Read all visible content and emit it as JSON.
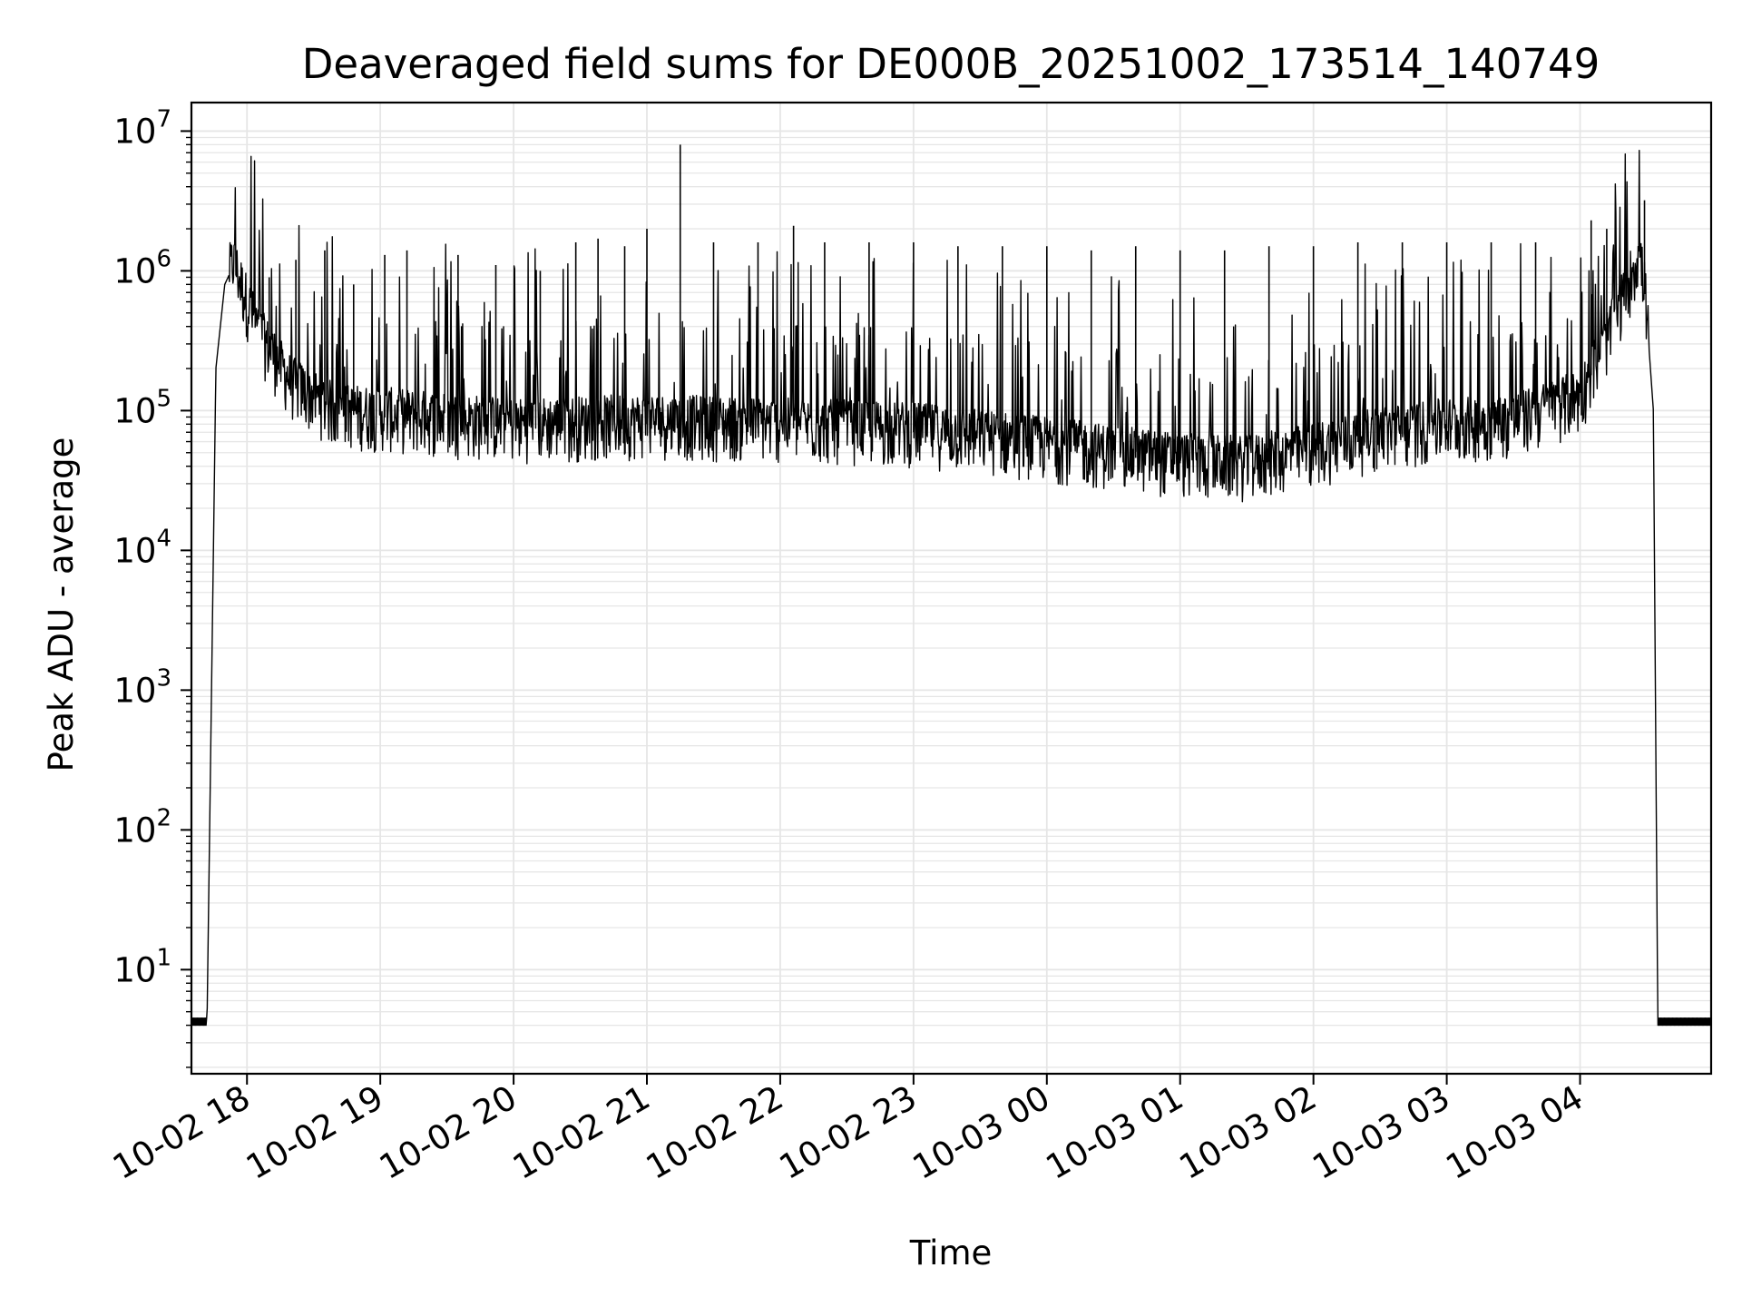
{
  "chart_data": {
    "type": "line",
    "title": "Deaveraged field sums for DE000B_20251002_173514_140749",
    "xlabel": "Time",
    "ylabel": "Peak ADU - average",
    "yscale": "log",
    "xlim": [
      "2025-10-02 17:35",
      "2025-10-03 04:59"
    ],
    "ylim": [
      1.8,
      16000000
    ],
    "grid": true,
    "x_ticks": [
      "10-02 18",
      "10-02 19",
      "10-02 20",
      "10-02 21",
      "10-02 22",
      "10-02 23",
      "10-03 00",
      "10-03 01",
      "10-03 02",
      "10-03 03",
      "10-03 04"
    ],
    "y_ticks": [
      {
        "base": "10",
        "exp": "1"
      },
      {
        "base": "10",
        "exp": "2"
      },
      {
        "base": "10",
        "exp": "3"
      },
      {
        "base": "10",
        "exp": "4"
      },
      {
        "base": "10",
        "exp": "5"
      },
      {
        "base": "10",
        "exp": "6"
      },
      {
        "base": "10",
        "exp": "7"
      }
    ],
    "line_color": "#000000",
    "grid_color": "#e6e6e6",
    "series": [
      {
        "baseline": [
          [
            "2025-10-02 17:35",
            4
          ],
          [
            "2025-10-02 17:42",
            4
          ],
          [
            "2025-10-02 17:46",
            200000
          ],
          [
            "2025-10-02 17:50",
            800000
          ],
          [
            "2025-10-02 17:54",
            1100000
          ],
          [
            "2025-10-02 17:58",
            700000
          ],
          [
            "2025-10-02 18:05",
            350000
          ],
          [
            "2025-10-02 18:20",
            150000
          ],
          [
            "2025-10-02 18:40",
            95000
          ],
          [
            "2025-10-02 19:00",
            90000
          ],
          [
            "2025-10-02 20:00",
            75000
          ],
          [
            "2025-10-02 21:00",
            80000
          ],
          [
            "2025-10-02 22:00",
            75000
          ],
          [
            "2025-10-02 23:00",
            70000
          ],
          [
            "2025-10-03 00:00",
            55000
          ],
          [
            "2025-10-03 00:30",
            48000
          ],
          [
            "2025-10-03 01:00",
            42000
          ],
          [
            "2025-10-03 01:30",
            40000
          ],
          [
            "2025-10-03 02:00",
            50000
          ],
          [
            "2025-10-03 02:30",
            65000
          ],
          [
            "2025-10-03 03:00",
            75000
          ],
          [
            "2025-10-03 03:30",
            80000
          ],
          [
            "2025-10-03 04:00",
            120000
          ],
          [
            "2025-10-03 04:15",
            400000
          ],
          [
            "2025-10-03 04:26",
            1200000
          ],
          [
            "2025-10-03 04:29",
            800000
          ],
          [
            "2025-10-03 04:33",
            100000
          ],
          [
            "2025-10-03 04:35",
            4
          ],
          [
            "2025-10-03 04:59",
            4
          ]
        ],
        "spikes": [
          [
            "2025-10-02 18:10",
            900000
          ],
          [
            "2025-10-02 18:22",
            1200000
          ],
          [
            "2025-10-02 18:35",
            1400000
          ],
          [
            "2025-10-02 18:48",
            800000
          ],
          [
            "2025-10-02 19:02",
            1300000
          ],
          [
            "2025-10-02 19:12",
            1400000
          ],
          [
            "2025-10-02 19:35",
            1300000
          ],
          [
            "2025-10-02 19:52",
            1100000
          ],
          [
            "2025-10-02 20:12",
            1000000
          ],
          [
            "2025-10-02 20:28",
            1600000
          ],
          [
            "2025-10-02 20:38",
            1700000
          ],
          [
            "2025-10-02 20:50",
            1500000
          ],
          [
            "2025-10-02 21:00",
            2000000
          ],
          [
            "2025-10-02 21:15",
            8000000
          ],
          [
            "2025-10-02 21:30",
            1600000
          ],
          [
            "2025-10-02 21:50",
            1600000
          ],
          [
            "2025-10-02 22:06",
            2100000
          ],
          [
            "2025-10-02 22:20",
            1600000
          ],
          [
            "2025-10-02 22:40",
            1600000
          ],
          [
            "2025-10-02 23:00",
            1600000
          ],
          [
            "2025-10-02 23:20",
            1500000
          ],
          [
            "2025-10-02 23:40",
            1500000
          ],
          [
            "2025-10-03 00:00",
            1500000
          ],
          [
            "2025-10-03 00:20",
            1400000
          ],
          [
            "2025-10-03 00:40",
            1500000
          ],
          [
            "2025-10-03 01:00",
            1400000
          ],
          [
            "2025-10-03 01:20",
            1400000
          ],
          [
            "2025-10-03 01:40",
            1500000
          ],
          [
            "2025-10-03 02:00",
            1500000
          ],
          [
            "2025-10-03 02:20",
            1600000
          ],
          [
            "2025-10-03 02:40",
            1600000
          ],
          [
            "2025-10-03 03:00",
            1600000
          ],
          [
            "2025-10-03 03:20",
            1600000
          ],
          [
            "2025-10-03 03:40",
            1600000
          ],
          [
            "2025-10-03 04:05",
            2300000
          ],
          [
            "2025-10-03 04:12",
            2000000
          ],
          [
            "2025-10-03 04:29",
            3200000
          ]
        ]
      }
    ]
  }
}
